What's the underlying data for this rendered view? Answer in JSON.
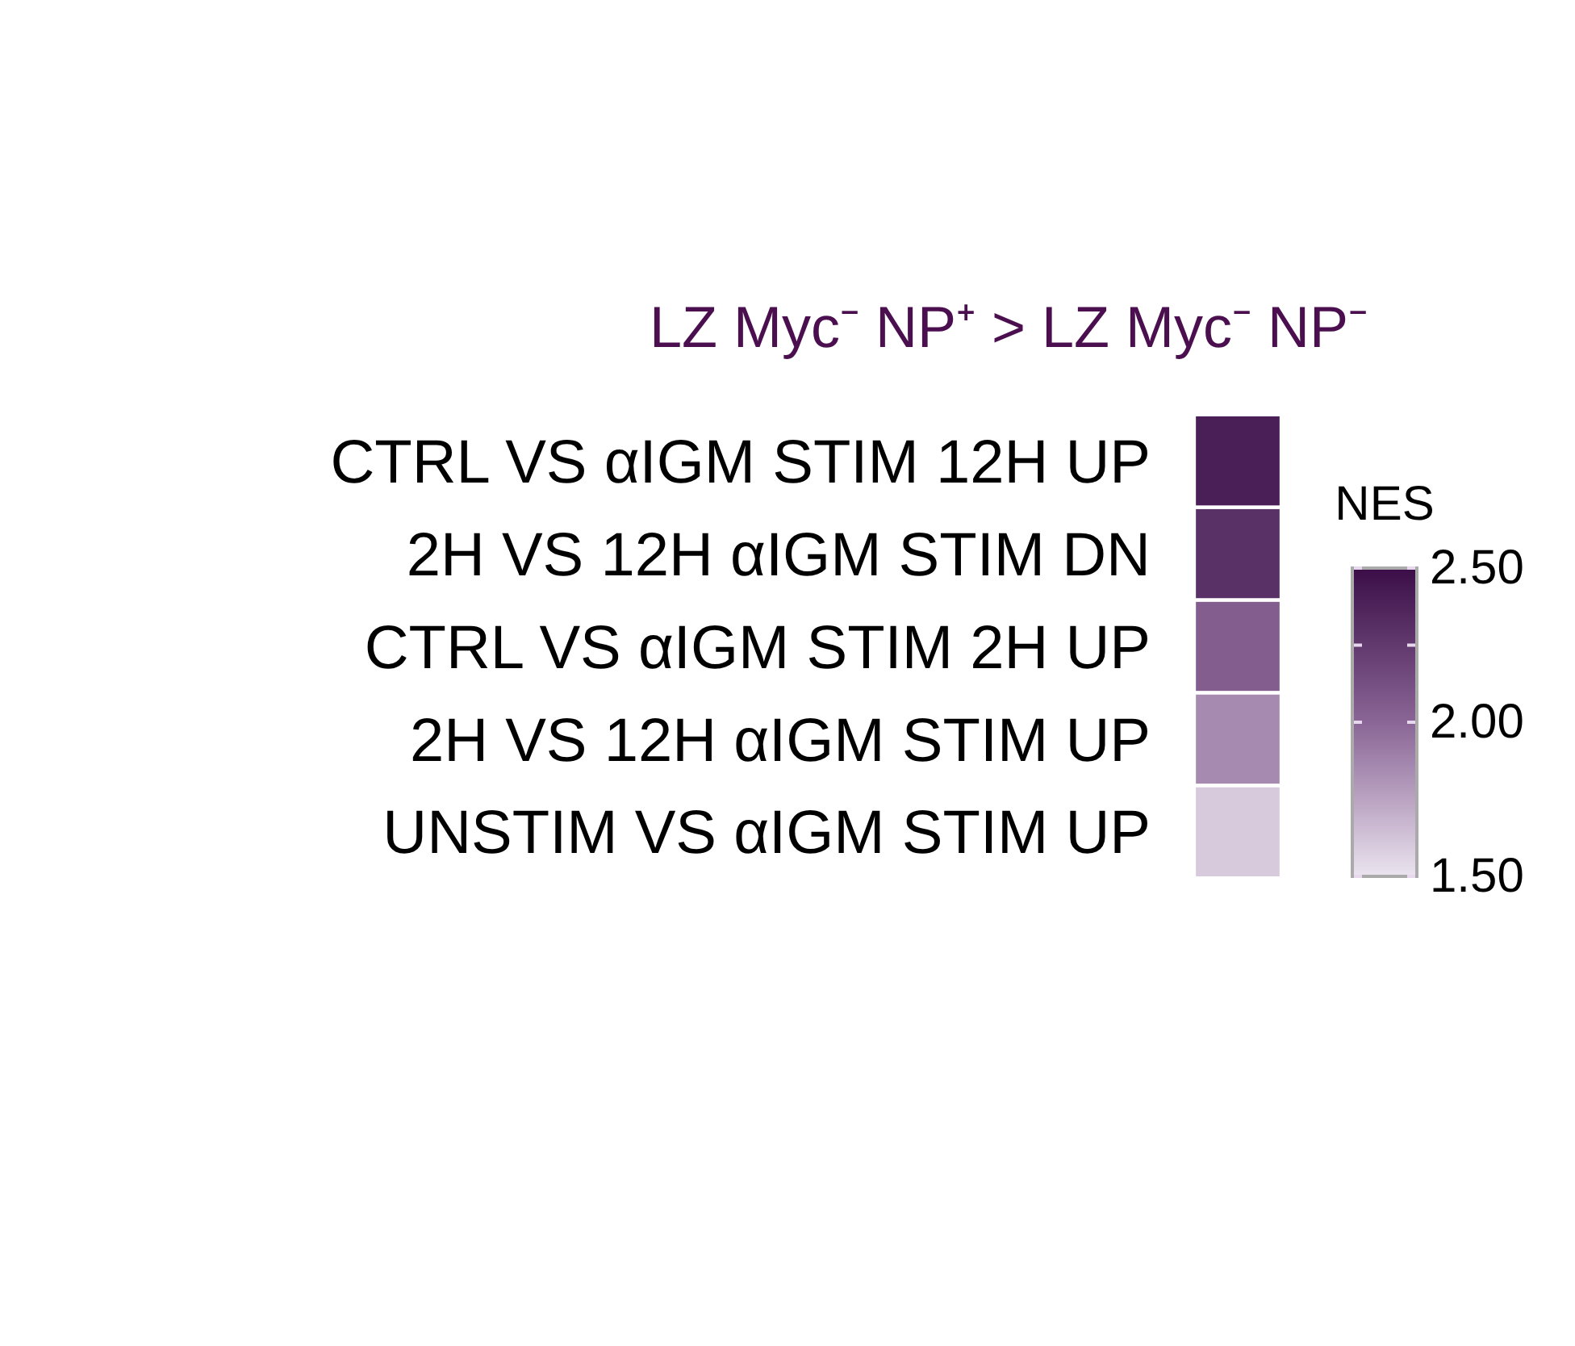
{
  "chart_data": {
    "type": "heatmap",
    "title": "LZ Myc⁻ NP⁺ > LZ Myc⁻ NP⁻",
    "categories": [
      null
    ],
    "y_categories": [
      "CTRL VS αIGM STIM 12H UP",
      "2H VS 12H αIGM STIM DN",
      "CTRL VS αIGM STIM 2H UP",
      "2H VS 12H αIGM STIM UP",
      "UNSTIM VS αIGM STIM UP"
    ],
    "cells": [
      [
        2.4
      ],
      [
        2.3
      ],
      [
        2.05
      ],
      [
        1.85
      ],
      [
        1.6
      ]
    ],
    "clabel": "NES",
    "clim": [
      1.5,
      2.5
    ],
    "cticks": [
      {
        "value": 1.5,
        "label": "1.50"
      },
      {
        "value": 2.0,
        "label": "2.00"
      },
      {
        "value": 2.25,
        "label": null
      },
      {
        "value": 2.5,
        "label": "2.50"
      }
    ]
  }
}
